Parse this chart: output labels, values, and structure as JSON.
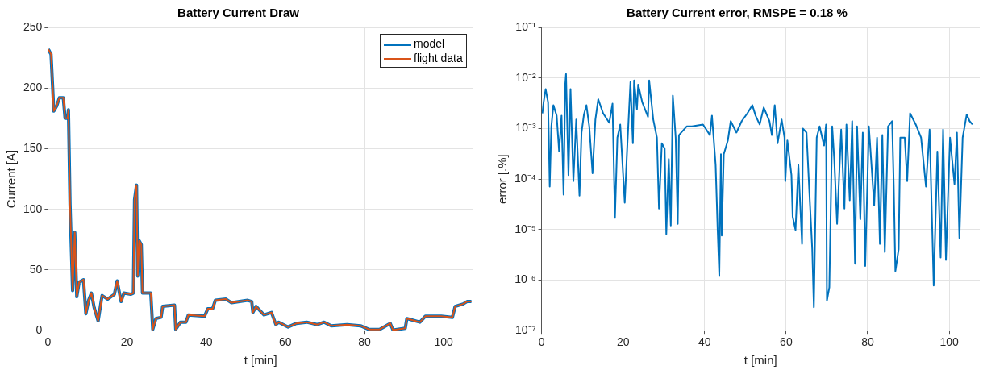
{
  "chart_data": [
    {
      "type": "line",
      "title": "Battery Current Draw",
      "xlabel": "t [min]",
      "ylabel": "Current [A]",
      "xlim": [
        0,
        107.5
      ],
      "xticks": [
        0,
        20,
        40,
        60,
        80,
        100
      ],
      "ylim": [
        0,
        250
      ],
      "yticks": [
        0,
        50,
        100,
        150,
        200,
        250
      ],
      "grid": true,
      "legend": "top right",
      "x": [
        0.1,
        0.3,
        0.6,
        0.8,
        1.5,
        2.2,
        2.9,
        3.9,
        4.35,
        5.0,
        5.2,
        5.6,
        6.25,
        6.8,
        7.3,
        7.9,
        9.0,
        9.6,
        10.3,
        11.0,
        11.7,
        12.7,
        13.7,
        15.1,
        16.8,
        17.5,
        18.5,
        19.2,
        20.9,
        21.6,
        21.9,
        22.4,
        22.7,
        23.1,
        23.6,
        23.9,
        26.0,
        26.5,
        27.3,
        28.6,
        29.0,
        32.0,
        32.3,
        33.5,
        34.9,
        35.5,
        39.6,
        40.4,
        41.6,
        42.3,
        45.0,
        46.4,
        50.5,
        51.5,
        51.8,
        52.6,
        54.6,
        56.5,
        57.6,
        58.3,
        60.7,
        62.8,
        65.4,
        68.1,
        69.8,
        71.6,
        75.6,
        79.0,
        81.1,
        83.8,
        86.5,
        87.2,
        90.3,
        90.7,
        94.0,
        95.4,
        98.1,
        99.4,
        102.2,
        102.9,
        104.9,
        105.9,
        107.0
      ],
      "series": [
        {
          "name": "model",
          "color": "#0072bd",
          "values": [
            232,
            231,
            229,
            228,
            181,
            185,
            192,
            192,
            175,
            175,
            182,
            104,
            33,
            81,
            28,
            40,
            42,
            14,
            25,
            31,
            19,
            8,
            29,
            26,
            30,
            41,
            24,
            31,
            30,
            31,
            108,
            120,
            45,
            74,
            71,
            31,
            31,
            1,
            10,
            11,
            20,
            21,
            1,
            7,
            7,
            13,
            12,
            18,
            18,
            25,
            26,
            23,
            25,
            24,
            15,
            20,
            13,
            15,
            5,
            7,
            3,
            6,
            7,
            5,
            7,
            4,
            5,
            4,
            1,
            1,
            6,
            0.5,
            2,
            10,
            7,
            12,
            12,
            12,
            11,
            20,
            22,
            24,
            24
          ]
        },
        {
          "name": "flight data",
          "color": "#d95319",
          "values": [
            232,
            231,
            229,
            228,
            181,
            185,
            192,
            192,
            175,
            175,
            182,
            104,
            33,
            81,
            28,
            40,
            42,
            14,
            25,
            31,
            19,
            8,
            29,
            26,
            30,
            41,
            24,
            31,
            30,
            31,
            108,
            120,
            45,
            74,
            71,
            31,
            31,
            1,
            10,
            11,
            20,
            21,
            1,
            7,
            7,
            13,
            12,
            18,
            18,
            25,
            26,
            23,
            25,
            24,
            15,
            20,
            13,
            15,
            5,
            7,
            3,
            6,
            7,
            5,
            7,
            4,
            5,
            4,
            1,
            1,
            6,
            0.5,
            2,
            10,
            7,
            12,
            12,
            12,
            11,
            20,
            22,
            24,
            24
          ]
        }
      ]
    },
    {
      "type": "line",
      "title": "Battery Current error, RMSPE = 0.18 %",
      "xlabel": "t [min]",
      "ylabel": "error [.%]",
      "log": "y",
      "xlim": [
        0,
        107.5
      ],
      "xticks": [
        0,
        20,
        40,
        60,
        80,
        100
      ],
      "ylim": [
        1e-07,
        0.1
      ],
      "yticks": [
        {
          "value": 1e-07,
          "label": "10⁻⁷"
        },
        {
          "value": 1e-06,
          "label": "10⁻⁶"
        },
        {
          "value": 1e-05,
          "label": "10⁻⁵"
        },
        {
          "value": 0.0001,
          "label": "10⁻⁴"
        },
        {
          "value": 0.001,
          "label": "10⁻³"
        },
        {
          "value": 0.01,
          "label": "10⁻²"
        },
        {
          "value": 0.1,
          "label": "10⁻¹"
        }
      ],
      "grid": true,
      "x": [
        0.2,
        0.5,
        1.0,
        1.6,
        2.0,
        2.4,
        2.9,
        3.7,
        4.3,
        4.9,
        5.4,
        5.8,
        6.0,
        6.6,
        7.1,
        7.8,
        8.5,
        9.3,
        9.8,
        10.4,
        11.0,
        11.7,
        12.5,
        13.2,
        13.9,
        15.1,
        16.6,
        17.4,
        18.0,
        18.6,
        19.3,
        20.4,
        21.0,
        21.8,
        22.4,
        22.7,
        23.4,
        23.7,
        24.7,
        26.1,
        26.4,
        27.4,
        28.3,
        28.8,
        29.5,
        30.2,
        30.6,
        31.2,
        31.7,
        32.2,
        32.9,
        33.4,
        33.7,
        35.6,
        36.9,
        39.6,
        41.3,
        41.8,
        42.7,
        43.2,
        43.6,
        44.0,
        44.2,
        44.7,
        45.7,
        46.4,
        47.8,
        49.1,
        50.5,
        51.7,
        52.5,
        53.5,
        54.5,
        55.9,
        56.5,
        57.2,
        57.9,
        58.9,
        59.6,
        59.8,
        60.3,
        61.3,
        61.6,
        62.3,
        63.0,
        63.9,
        64.1,
        65.0,
        65.7,
        66.4,
        66.8,
        67.5,
        68.2,
        69.3,
        69.8,
        70.0,
        70.6,
        71.3,
        71.8,
        72.5,
        73.5,
        74.3,
        74.8,
        75.6,
        76.2,
        76.9,
        77.4,
        78.2,
        78.8,
        79.4,
        80.3,
        81.6,
        82.3,
        83.0,
        83.6,
        84.2,
        85.0,
        86.0,
        86.4,
        86.8,
        87.6,
        88.0,
        89.1,
        89.7,
        90.4,
        91.8,
        93.1,
        94.3,
        95.2,
        96.2,
        97.1,
        97.9,
        98.5,
        99.2,
        100.2,
        101.3,
        101.9,
        102.5,
        103.3,
        104.3,
        105.0,
        105.7
      ],
      "series": [
        {
          "color": "#0072bd",
          "values": [
            0.002,
            0.0033,
            0.006,
            0.0033,
            7.1e-05,
            0.0011,
            0.0029,
            0.0018,
            0.00035,
            0.0018,
            4.9e-05,
            0.0074,
            0.012,
            0.00012,
            0.006,
            9.1e-05,
            0.0015,
            4.7e-05,
            0.00083,
            0.0019,
            0.0029,
            0.0011,
            0.00013,
            0.0015,
            0.0038,
            0.002,
            0.0013,
            0.0031,
            1.7e-05,
            0.00066,
            0.0012,
            3.4e-05,
            0.0004,
            0.0083,
            0.00051,
            0.0089,
            0.0024,
            0.0074,
            0.0033,
            0.0017,
            0.0089,
            0.0015,
            0.00066,
            2.6e-05,
            0.00051,
            0.0004,
            8.1e-06,
            0.00025,
            1.2e-05,
            0.0045,
            0.00066,
            1.3e-05,
            0.00074,
            0.0011,
            0.0011,
            0.0012,
            0.00074,
            0.0018,
            0.00019,
            9.8e-06,
            1.2e-06,
            0.00031,
            7.6e-06,
            0.00031,
            0.00058,
            0.0014,
            0.00083,
            0.0014,
            0.002,
            0.0029,
            0.0018,
            0.0012,
            0.0026,
            0.0014,
            0.00074,
            0.0029,
            0.00051,
            0.0015,
            0.00066,
            9.1e-05,
            0.00058,
            0.00012,
            1.8e-05,
            9.8e-06,
            0.00019,
            5.2e-06,
            0.001,
            0.00083,
            5.5e-05,
            4.1e-06,
            2.9e-07,
            0.00066,
            0.0011,
            0.00046,
            0.0012,
            3.9e-07,
            7.2e-07,
            0.0011,
            0.00025,
            1.3e-05,
            0.00095,
            2.6e-05,
            0.0012,
            3.8e-05,
            0.0014,
            2.1e-06,
            0.0011,
            1.6e-05,
            0.00083,
            1.9e-06,
            0.0011,
            3e-05,
            0.00066,
            5.2e-06,
            0.00074,
            3.6e-06,
            0.0011,
            0.0014,
            7.1e-05,
            1.5e-06,
            4.1e-06,
            0.00066,
            0.00066,
            9.1e-05,
            0.002,
            0.0012,
            0.00066,
            7.1e-05,
            0.00095,
            7.8e-07,
            0.00035,
            2.8e-06,
            0.00095,
            2.5e-06,
            0.00066,
            7.9e-05,
            0.00083,
            6.8e-06,
            0.00066,
            0.0019,
            0.0014,
            0.0012
          ]
        }
      ]
    }
  ]
}
